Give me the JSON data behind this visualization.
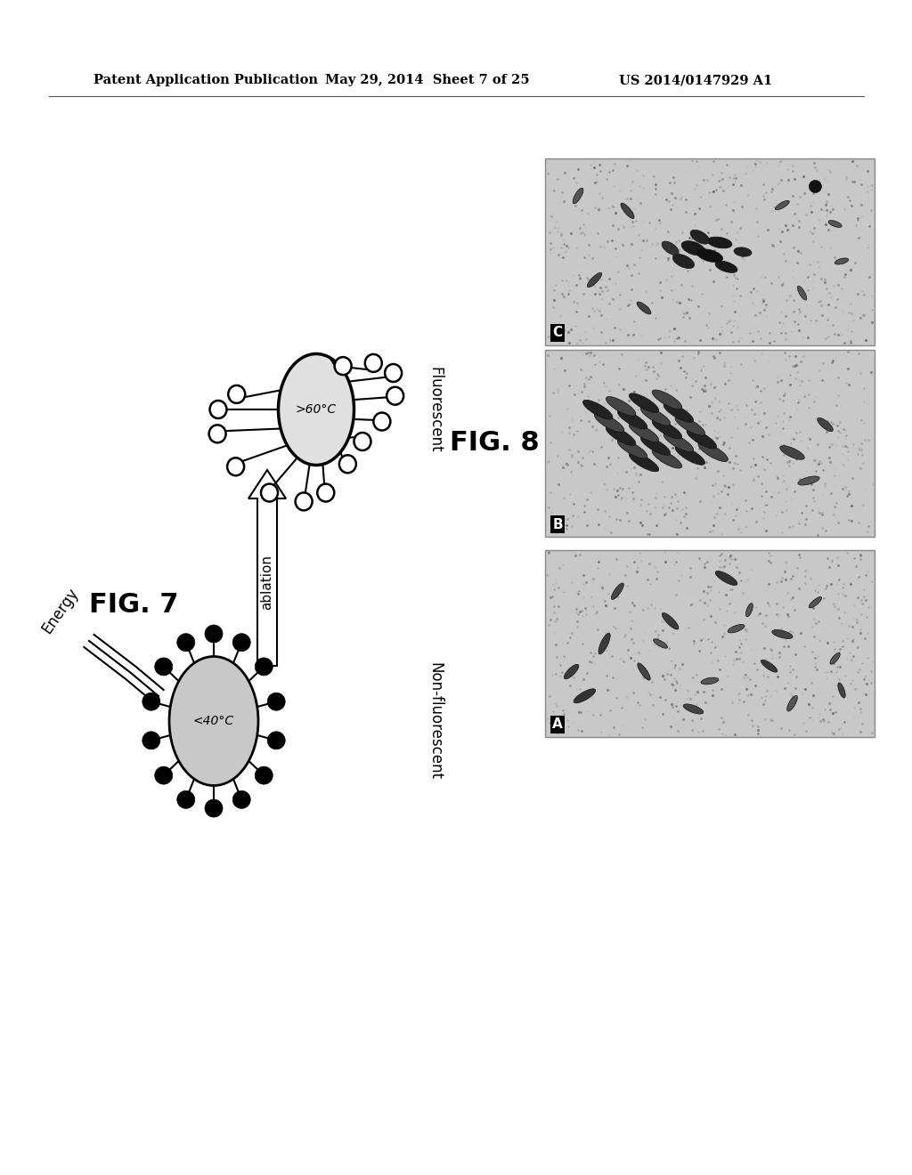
{
  "header_left": "Patent Application Publication",
  "header_mid": "May 29, 2014  Sheet 7 of 25",
  "header_right": "US 2014/0147929 A1",
  "fig7_label": "FIG. 7",
  "fig8_label": "FIG. 8",
  "background_color": "#ffffff",
  "text_color": "#000000",
  "ellipse_fill_bottom": "#c8c8c8",
  "ellipse_fill_top": "#e0e0e0",
  "label_fluorescent": "Fluorescent",
  "label_non_fluorescent": "Non-fluorescent",
  "label_ablation": "ablation",
  "label_energy": "Energy",
  "temp_bottom": "<40°C",
  "temp_top": ">60°C",
  "img_bg_color": "#d0d0d0"
}
